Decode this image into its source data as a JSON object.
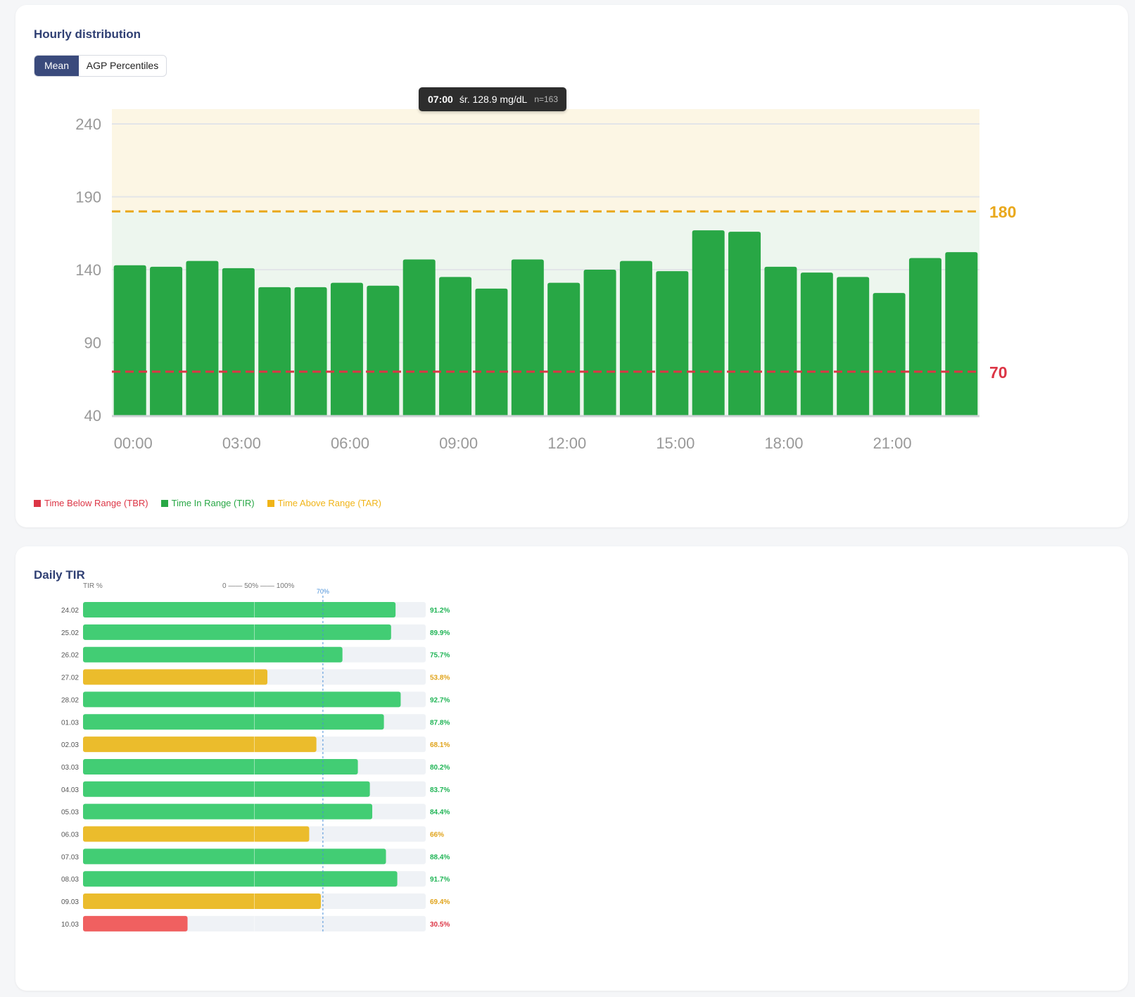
{
  "hourly": {
    "title": "Hourly distribution",
    "toggle": {
      "options": [
        "Mean",
        "AGP Percentiles"
      ],
      "selected": "Mean"
    },
    "tooltip": {
      "hour": "07:00",
      "text": "śr. 128.9 mg/dL",
      "n": "n=163"
    },
    "legend": [
      {
        "label": "Time Below Range (TBR)",
        "color": "#dc3545"
      },
      {
        "label": "Time In Range (TIR)",
        "color": "#28a745"
      },
      {
        "label": "Time Above Range (TAR)",
        "color": "#f0b418"
      }
    ],
    "chart_data": {
      "type": "bar",
      "categories": [
        "00:00",
        "01:00",
        "02:00",
        "03:00",
        "04:00",
        "05:00",
        "06:00",
        "07:00",
        "08:00",
        "09:00",
        "10:00",
        "11:00",
        "12:00",
        "13:00",
        "14:00",
        "15:00",
        "16:00",
        "17:00",
        "18:00",
        "19:00",
        "20:00",
        "21:00",
        "22:00",
        "23:00"
      ],
      "x_tick_labels": [
        "00:00",
        "03:00",
        "06:00",
        "09:00",
        "12:00",
        "15:00",
        "18:00",
        "21:00"
      ],
      "values": [
        143,
        142,
        146,
        141,
        128,
        128,
        131,
        129,
        147,
        135,
        127,
        147,
        131,
        140,
        146,
        139,
        167,
        166,
        142,
        138,
        135,
        124,
        148,
        152
      ],
      "y_ticks": [
        40,
        90,
        140,
        190,
        240
      ],
      "ylim": [
        40,
        250
      ],
      "thresholds": [
        {
          "value": 180,
          "label": "180",
          "color": "#e9a81c"
        },
        {
          "value": 70,
          "label": "70",
          "color": "#dc3545"
        }
      ],
      "bar_color": "#28a745",
      "band_above_color": "#fcf6e4",
      "band_in_color": "#edf6ee",
      "grid": true
    }
  },
  "daily": {
    "title": "Daily TIR",
    "header_left": "TIR %",
    "header_scale": "0 —— 50% —— 100%",
    "target_label": "70%",
    "chart_data": {
      "type": "bar",
      "orientation": "horizontal",
      "categories": [
        "24.02",
        "25.02",
        "26.02",
        "27.02",
        "28.02",
        "01.03",
        "02.03",
        "03.03",
        "04.03",
        "05.03",
        "06.03",
        "07.03",
        "08.03",
        "09.03",
        "10.03"
      ],
      "values": [
        91.2,
        89.9,
        75.7,
        53.8,
        92.7,
        87.8,
        68.1,
        80.2,
        83.7,
        84.4,
        66,
        88.4,
        91.7,
        69.4,
        30.5
      ],
      "value_labels": [
        "91.2%",
        "89.9%",
        "75.7%",
        "53.8%",
        "92.7%",
        "87.8%",
        "68.1%",
        "80.2%",
        "83.7%",
        "84.4%",
        "66%",
        "88.4%",
        "91.7%",
        "69.4%",
        "30.5%"
      ],
      "xlim": [
        0,
        100
      ],
      "target": 70,
      "colors": {
        "good": "#42cd74",
        "mid": "#ebbc2c",
        "low": "#f06060",
        "track": "#eff2f6",
        "target_line": "#4a90d9"
      },
      "label_colors": {
        "good": "#1fb455",
        "mid": "#e0a31a",
        "low": "#dc3545"
      }
    }
  }
}
